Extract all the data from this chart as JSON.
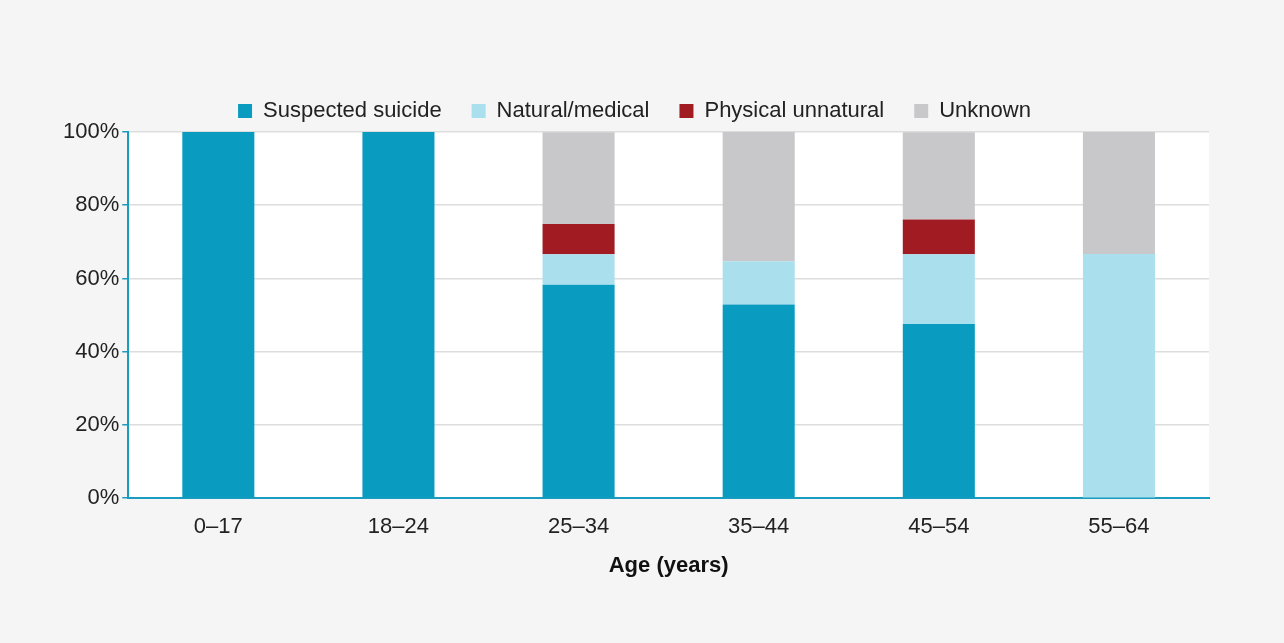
{
  "chart_data": {
    "type": "bar",
    "stacked": true,
    "xlabel": "Age (years)",
    "categories": [
      "0–17",
      "18–24",
      "25–34",
      "35–44",
      "45–54",
      "55–64"
    ],
    "series": [
      {
        "name": "Suspected suicide",
        "color": "#0a9cc0",
        "values": [
          100,
          100,
          58.3,
          52.9,
          47.6,
          0
        ]
      },
      {
        "name": "Natural/medical",
        "color": "#aadfee",
        "values": [
          0,
          0,
          8.3,
          11.8,
          19.0,
          66.7
        ]
      },
      {
        "name": "Physical unnatural",
        "color": "#a01c22",
        "values": [
          0,
          0,
          8.3,
          0,
          9.5,
          0
        ]
      },
      {
        "name": "Unknown",
        "color": "#c8c8ca",
        "values": [
          0,
          0,
          25.0,
          35.3,
          23.8,
          33.3
        ]
      }
    ],
    "ylim": [
      0,
      100
    ],
    "yticks": [
      {
        "value": 0,
        "label": "0%"
      },
      {
        "value": 20,
        "label": "20%"
      },
      {
        "value": 40,
        "label": "40%"
      },
      {
        "value": 60,
        "label": "60%"
      },
      {
        "value": 80,
        "label": "80%"
      },
      {
        "value": 100,
        "label": "100%"
      }
    ],
    "grid": "y",
    "legend": "top"
  }
}
